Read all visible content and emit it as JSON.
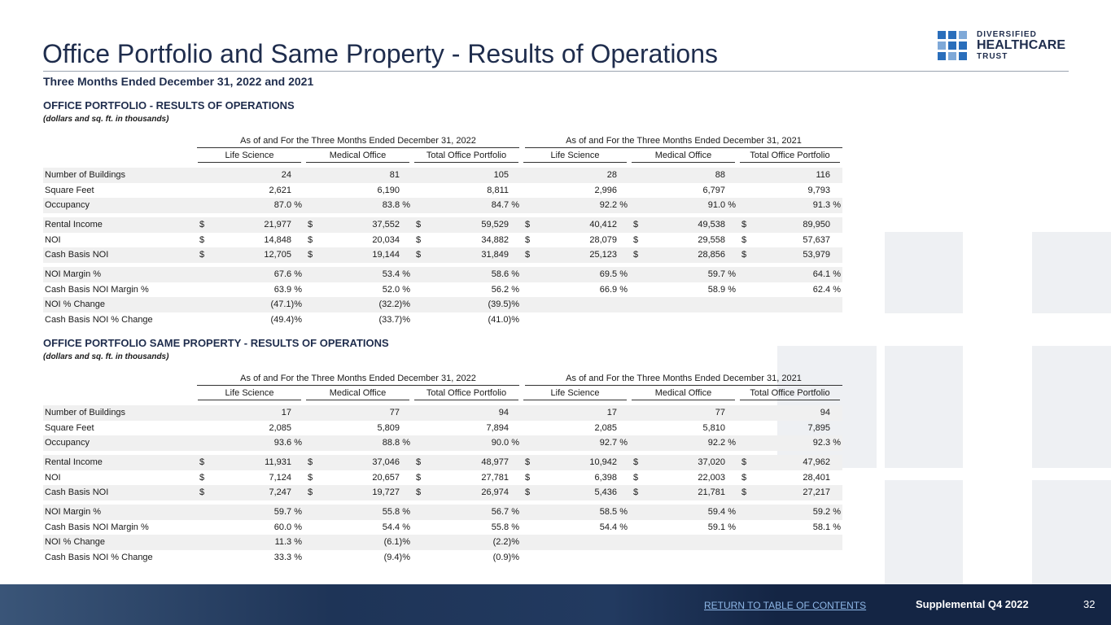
{
  "header": {
    "title": "Office Portfolio and Same Property - Results of Operations",
    "subtitle": "Three Months Ended December 31, 2022 and 2021",
    "logo": [
      "DIVERSIFIED",
      "HEALTHCARE",
      "TRUST"
    ]
  },
  "sections": [
    {
      "title": "OFFICE PORTFOLIO -  RESULTS OF OPERATIONS",
      "note": "(dollars and sq. ft. in thousands)",
      "periods": [
        "As of and For the Three Months Ended December 31, 2022",
        "As of and For the Three Months Ended December 31, 2021"
      ],
      "columns": [
        "Life Science",
        "Medical Office",
        "Total Office Portfolio",
        "Life Science",
        "Medical Office",
        "Total Office Portfolio"
      ],
      "groups": [
        [
          {
            "label": "Number of Buildings",
            "cells": [
              "24",
              "81",
              "105",
              "28",
              "88",
              "116"
            ]
          },
          {
            "label": "Square Feet",
            "cells": [
              "2,621",
              "6,190",
              "8,811",
              "2,996",
              "6,797",
              "9,793"
            ]
          },
          {
            "label": "Occupancy",
            "cells": [
              "87.0 %",
              "83.8 %",
              "84.7 %",
              "92.2 %",
              "91.0 %",
              "91.3 %"
            ]
          }
        ],
        [
          {
            "label": "Rental Income",
            "currency": "$",
            "cells": [
              "21,977",
              "37,552",
              "59,529",
              "40,412",
              "49,538",
              "89,950"
            ]
          },
          {
            "label": "NOI",
            "currency": "$",
            "cells": [
              "14,848",
              "20,034",
              "34,882",
              "28,079",
              "29,558",
              "57,637"
            ]
          },
          {
            "label": "Cash Basis NOI",
            "currency": "$",
            "cells": [
              "12,705",
              "19,144",
              "31,849",
              "25,123",
              "28,856",
              "53,979"
            ]
          }
        ],
        [
          {
            "label": "NOI Margin %",
            "cells": [
              "67.6 %",
              "53.4 %",
              "58.6 %",
              "69.5 %",
              "59.7 %",
              "64.1 %"
            ]
          },
          {
            "label": "Cash Basis NOI Margin %",
            "cells": [
              "63.9 %",
              "52.0 %",
              "56.2 %",
              "66.9 %",
              "58.9 %",
              "62.4 %"
            ]
          },
          {
            "label": "NOI % Change",
            "cells": [
              "(47.1)%",
              "(32.2)%",
              "(39.5)%"
            ]
          },
          {
            "label": "Cash Basis NOI % Change",
            "cells": [
              "(49.4)%",
              "(33.7)%",
              "(41.0)%"
            ]
          }
        ]
      ]
    },
    {
      "title": "OFFICE PORTFOLIO SAME PROPERTY - RESULTS OF OPERATIONS",
      "note": "(dollars and sq. ft. in thousands)",
      "periods": [
        "As of and For the Three Months Ended December 31, 2022",
        "As of and For the Three Months Ended December 31, 2021"
      ],
      "columns": [
        "Life Science",
        "Medical Office",
        "Total Office Portfolio",
        "Life Science",
        "Medical Office",
        "Total Office Portfolio"
      ],
      "groups": [
        [
          {
            "label": "Number of Buildings",
            "cells": [
              "17",
              "77",
              "94",
              "17",
              "77",
              "94"
            ]
          },
          {
            "label": "Square Feet",
            "cells": [
              "2,085",
              "5,809",
              "7,894",
              "2,085",
              "5,810",
              "7,895"
            ]
          },
          {
            "label": "Occupancy",
            "cells": [
              "93.6 %",
              "88.8 %",
              "90.0 %",
              "92.7 %",
              "92.2 %",
              "92.3 %"
            ]
          }
        ],
        [
          {
            "label": "Rental Income",
            "currency": "$",
            "cells": [
              "11,931",
              "37,046",
              "48,977",
              "10,942",
              "37,020",
              "47,962"
            ]
          },
          {
            "label": "NOI",
            "currency": "$",
            "cells": [
              "7,124",
              "20,657",
              "27,781",
              "6,398",
              "22,003",
              "28,401"
            ]
          },
          {
            "label": "Cash Basis NOI",
            "currency": "$",
            "cells": [
              "7,247",
              "19,727",
              "26,974",
              "5,436",
              "21,781",
              "27,217"
            ]
          }
        ],
        [
          {
            "label": "NOI Margin %",
            "cells": [
              "59.7 %",
              "55.8 %",
              "56.7 %",
              "58.5 %",
              "59.4 %",
              "59.2 %"
            ]
          },
          {
            "label": "Cash Basis NOI Margin %",
            "cells": [
              "60.0 %",
              "54.4 %",
              "55.8 %",
              "54.4 %",
              "59.1 %",
              "58.1 %"
            ]
          },
          {
            "label": "NOI % Change",
            "cells": [
              "11.3 %",
              "(6.1)%",
              "(2.2)%"
            ]
          },
          {
            "label": "Cash Basis NOI % Change",
            "cells": [
              "33.3 %",
              "(9.4)%",
              "(0.9)%"
            ]
          }
        ]
      ]
    }
  ],
  "footer": {
    "link": "RETURN TO TABLE OF CONTENTS",
    "supplemental": "Supplemental Q4 2022",
    "page": "32"
  }
}
